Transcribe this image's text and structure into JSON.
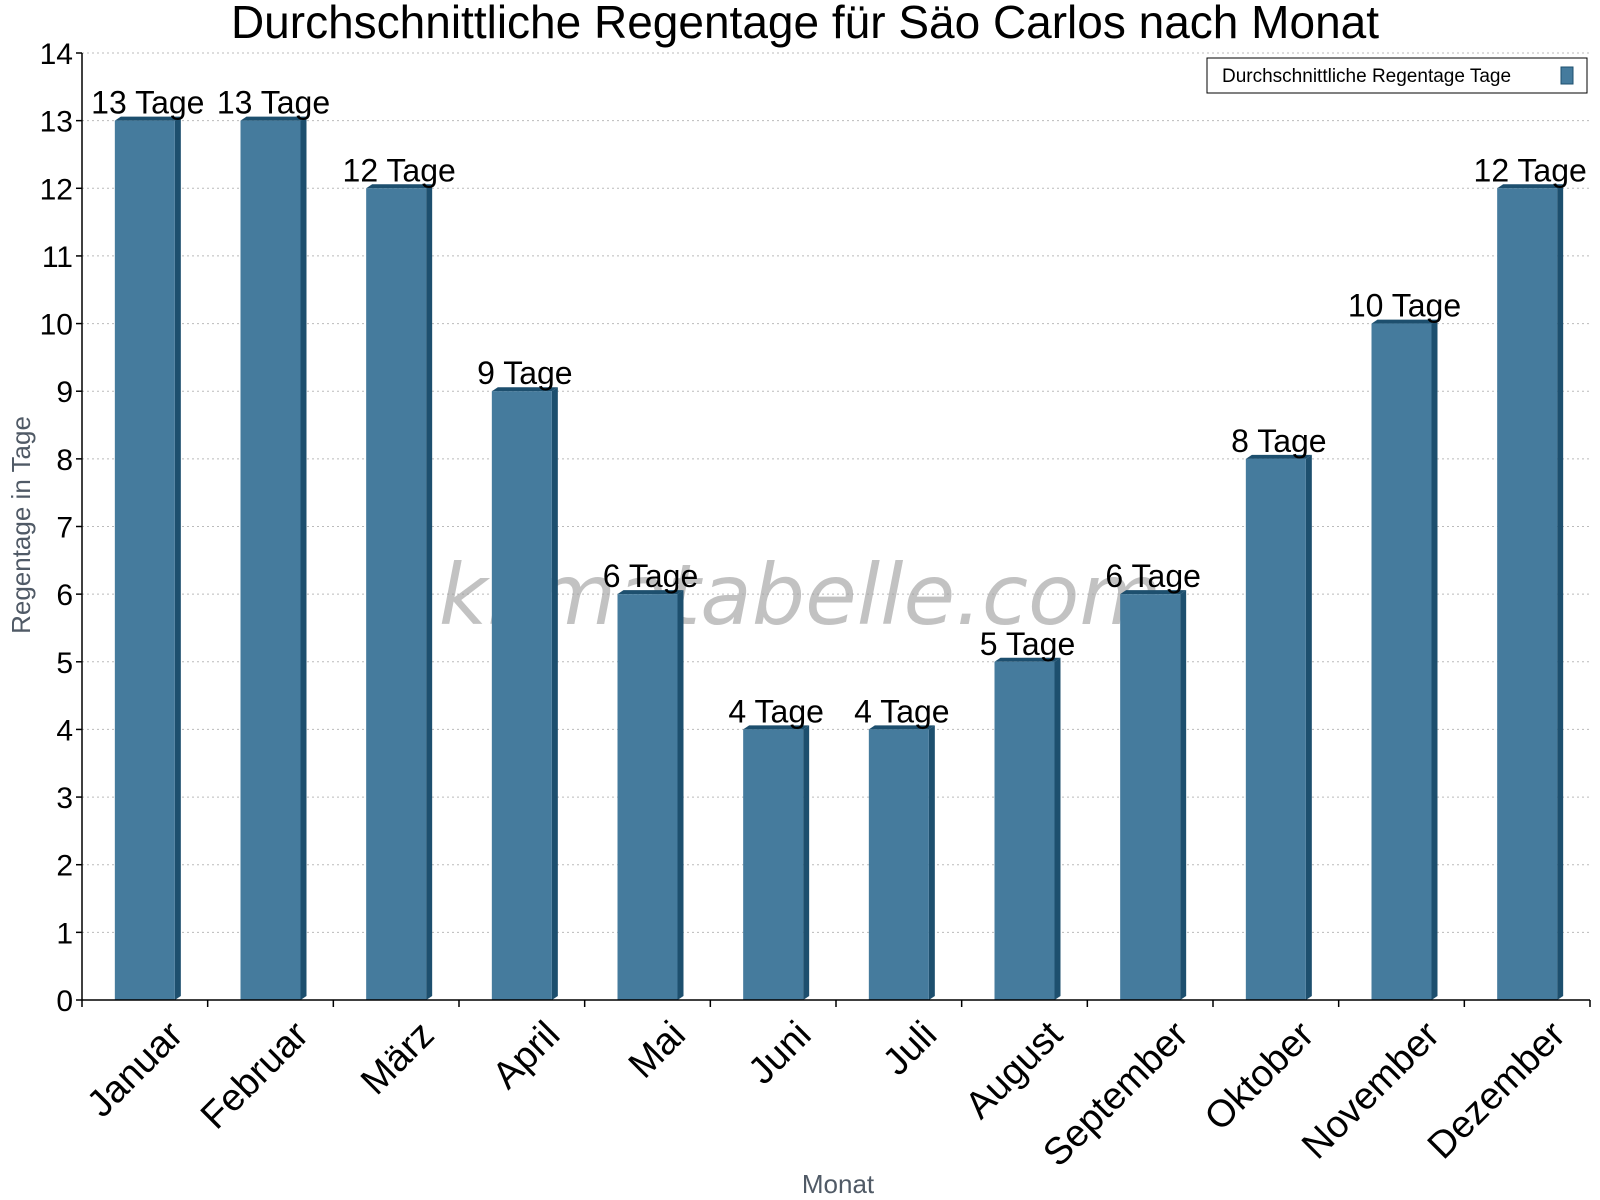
{
  "chart_data": {
    "type": "bar",
    "title": "Durchschnittliche Regentage für Säo Carlos nach Monat",
    "xlabel": "Monat",
    "ylabel": "Regentage in Tage",
    "categories": [
      "Januar",
      "Februar",
      "März",
      "April",
      "Mai",
      "Juni",
      "Juli",
      "August",
      "September",
      "Oktober",
      "November",
      "Dezember"
    ],
    "series": [
      {
        "name": "Durchschnittliche Regentage Tage",
        "values": [
          13,
          13,
          12,
          9,
          6,
          4,
          4,
          5,
          6,
          8,
          10,
          12
        ],
        "labels": [
          "13 Tage",
          "13 Tage",
          "12 Tage",
          "9 Tage",
          "6 Tage",
          "4 Tage",
          "4 Tage",
          "5 Tage",
          "6 Tage",
          "8 Tage",
          "10 Tage",
          "12 Tage"
        ],
        "color": "#457b9d"
      }
    ],
    "ylim": [
      0,
      14
    ],
    "yticks": [
      "0",
      "1",
      "2",
      "3",
      "4",
      "5",
      "6",
      "7",
      "8",
      "9",
      "10",
      "11",
      "12",
      "13",
      "14"
    ],
    "grid": true,
    "legend_position": "top-right"
  },
  "watermark": "klimatabelle.com",
  "colors": {
    "bar_front": "#457b9d",
    "bar_side": "#1d4f6e",
    "grid": "#bbbbbb"
  }
}
